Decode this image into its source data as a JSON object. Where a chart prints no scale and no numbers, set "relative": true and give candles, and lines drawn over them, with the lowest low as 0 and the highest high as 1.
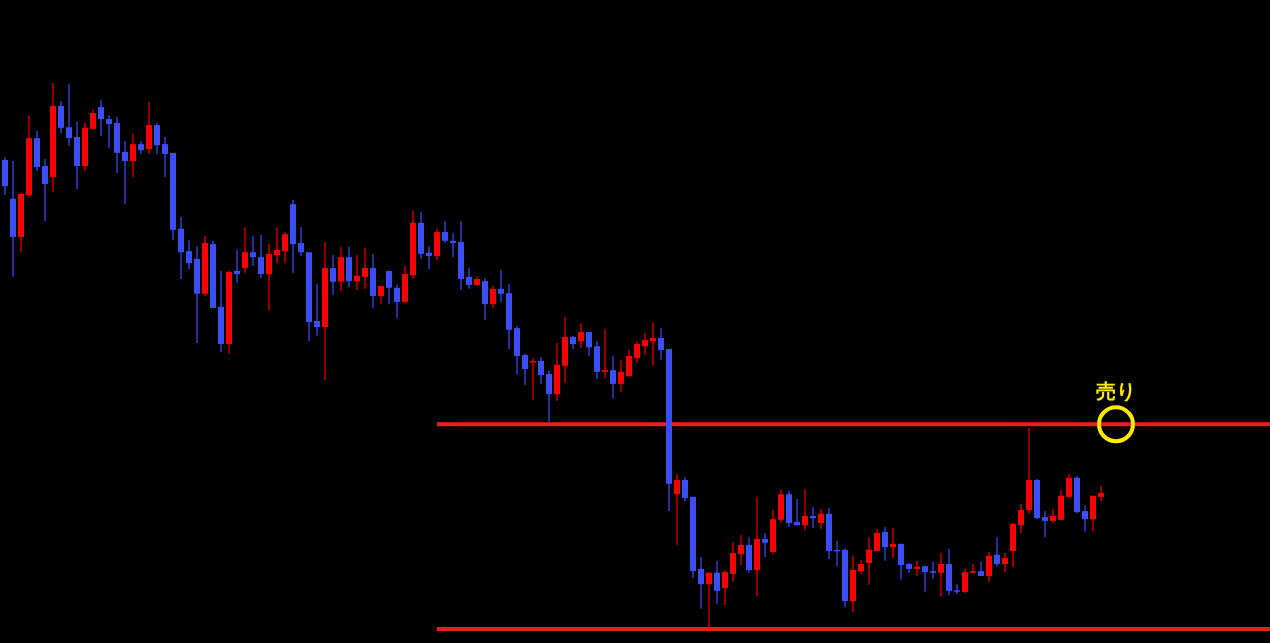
{
  "chart_data": {
    "type": "candlestick",
    "relative": true,
    "categories": [
      null,
      null,
      null,
      null,
      null,
      null,
      null,
      null,
      null,
      null,
      null,
      null,
      null,
      null,
      null,
      null,
      null,
      null,
      null,
      null,
      null,
      null,
      null,
      null,
      null,
      null,
      null,
      null,
      null,
      null,
      null,
      null,
      null,
      null,
      null,
      null,
      null,
      null,
      null,
      null,
      null,
      null,
      null,
      null,
      null,
      null,
      null,
      null,
      null,
      null,
      null,
      null,
      null,
      null,
      null,
      null,
      null,
      null,
      null,
      null,
      null,
      null,
      null,
      null,
      null,
      null,
      null,
      null,
      null,
      null,
      null,
      null,
      null,
      null,
      null,
      null,
      null,
      null,
      null,
      null,
      null,
      null,
      null,
      null,
      null,
      null,
      null,
      null,
      null,
      null,
      null,
      null,
      null,
      null,
      null,
      null,
      null,
      null,
      null,
      null,
      null,
      null,
      null,
      null,
      null,
      null,
      null,
      null,
      null,
      null,
      null,
      null,
      null,
      null,
      null,
      null,
      null,
      null,
      null,
      null,
      null,
      null,
      null,
      null,
      null,
      null,
      null,
      null,
      null,
      null,
      null,
      null,
      null,
      null,
      null,
      null,
      null,
      null
    ],
    "ohlc": [
      [
        0.859,
        0.864,
        0.795,
        0.811
      ],
      [
        0.788,
        0.857,
        0.645,
        0.718
      ],
      [
        0.718,
        0.799,
        0.69,
        0.797
      ],
      [
        0.795,
        0.941,
        0.791,
        0.899
      ],
      [
        0.899,
        0.912,
        0.839,
        0.846
      ],
      [
        0.848,
        0.861,
        0.747,
        0.815
      ],
      [
        0.828,
        1,
        0.8,
        0.958
      ],
      [
        0.958,
        0.967,
        0.908,
        0.918
      ],
      [
        0.919,
        0.998,
        0.885,
        0.899
      ],
      [
        0.901,
        0.929,
        0.806,
        0.848
      ],
      [
        0.848,
        0.927,
        0.839,
        0.918
      ],
      [
        0.916,
        0.951,
        0.916,
        0.945
      ],
      [
        0.956,
        0.969,
        0.903,
        0.934
      ],
      [
        0.934,
        0.941,
        0.881,
        0.925
      ],
      [
        0.927,
        0.938,
        0.835,
        0.872
      ],
      [
        0.874,
        0.894,
        0.778,
        0.857
      ],
      [
        0.857,
        0.907,
        0.828,
        0.888
      ],
      [
        0.888,
        0.894,
        0.87,
        0.877
      ],
      [
        0.879,
        0.965,
        0.87,
        0.923
      ],
      [
        0.923,
        0.927,
        0.87,
        0.886
      ],
      [
        0.888,
        0.901,
        0.828,
        0.87
      ],
      [
        0.872,
        0.872,
        0.712,
        0.731
      ],
      [
        0.733,
        0.755,
        0.641,
        0.69
      ],
      [
        0.692,
        0.712,
        0.659,
        0.67
      ],
      [
        0.678,
        0.701,
        0.524,
        0.614
      ],
      [
        0.614,
        0.72,
        0.61,
        0.707
      ],
      [
        0.705,
        0.711,
        0.588,
        0.588
      ],
      [
        0.59,
        0.656,
        0.507,
        0.522
      ],
      [
        0.522,
        0.656,
        0.504,
        0.654
      ],
      [
        0.656,
        0.694,
        0.634,
        0.65
      ],
      [
        0.661,
        0.736,
        0.652,
        0.69
      ],
      [
        0.69,
        0.72,
        0.665,
        0.681
      ],
      [
        0.681,
        0.722,
        0.643,
        0.65
      ],
      [
        0.65,
        0.705,
        0.584,
        0.687
      ],
      [
        0.685,
        0.736,
        0.67,
        0.694
      ],
      [
        0.692,
        0.727,
        0.67,
        0.723
      ],
      [
        0.778,
        0.786,
        0.652,
        0.705
      ],
      [
        0.707,
        0.736,
        0.683,
        0.69
      ],
      [
        0.69,
        0.69,
        0.527,
        0.562
      ],
      [
        0.564,
        0.632,
        0.537,
        0.553
      ],
      [
        0.553,
        0.709,
        0.456,
        0.661
      ],
      [
        0.661,
        0.685,
        0.612,
        0.636
      ],
      [
        0.636,
        0.7,
        0.619,
        0.681
      ],
      [
        0.681,
        0.7,
        0.626,
        0.637
      ],
      [
        0.637,
        0.685,
        0.621,
        0.647
      ],
      [
        0.645,
        0.698,
        0.623,
        0.661
      ],
      [
        0.661,
        0.687,
        0.588,
        0.61
      ],
      [
        0.61,
        0.628,
        0.595,
        0.628
      ],
      [
        0.656,
        0.656,
        0.595,
        0.625
      ],
      [
        0.625,
        0.63,
        0.57,
        0.599
      ],
      [
        0.599,
        0.665,
        0.597,
        0.65
      ],
      [
        0.648,
        0.767,
        0.641,
        0.744
      ],
      [
        0.744,
        0.764,
        0.678,
        0.687
      ],
      [
        0.689,
        0.701,
        0.659,
        0.683
      ],
      [
        0.683,
        0.733,
        0.676,
        0.727
      ],
      [
        0.727,
        0.747,
        0.707,
        0.711
      ],
      [
        0.711,
        0.725,
        0.681,
        0.707
      ],
      [
        0.709,
        0.747,
        0.621,
        0.641
      ],
      [
        0.645,
        0.661,
        0.623,
        0.63
      ],
      [
        0.63,
        0.645,
        0.628,
        0.641
      ],
      [
        0.637,
        0.643,
        0.566,
        0.595
      ],
      [
        0.595,
        0.628,
        0.588,
        0.623
      ],
      [
        0.623,
        0.658,
        0.599,
        0.614
      ],
      [
        0.615,
        0.632,
        0.513,
        0.548
      ],
      [
        0.551,
        0.555,
        0.467,
        0.5
      ],
      [
        0.502,
        0.504,
        0.447,
        0.476
      ],
      [
        0.489,
        0.496,
        0.419,
        0.491
      ],
      [
        0.491,
        0.498,
        0.449,
        0.465
      ],
      [
        0.467,
        0.473,
        0.379,
        0.43
      ],
      [
        0.43,
        0.524,
        0.418,
        0.484
      ],
      [
        0.482,
        0.571,
        0.451,
        0.535
      ],
      [
        0.535,
        0.537,
        0.513,
        0.522
      ],
      [
        0.527,
        0.56,
        0.515,
        0.544
      ],
      [
        0.544,
        0.544,
        0.5,
        0.516
      ],
      [
        0.518,
        0.527,
        0.458,
        0.471
      ],
      [
        0.471,
        0.549,
        0.46,
        0.474
      ],
      [
        0.474,
        0.5,
        0.423,
        0.449
      ],
      [
        0.449,
        0.493,
        0.434,
        0.471
      ],
      [
        0.463,
        0.511,
        0.462,
        0.5
      ],
      [
        0.496,
        0.527,
        0.487,
        0.522
      ],
      [
        0.518,
        0.542,
        0.502,
        0.529
      ],
      [
        0.527,
        0.562,
        0.482,
        0.533
      ],
      [
        0.533,
        0.551,
        0.493,
        0.511
      ],
      [
        0.513,
        0.513,
        0.216,
        0.266
      ],
      [
        0.247,
        0.284,
        0.154,
        0.273
      ],
      [
        0.273,
        0.278,
        0.234,
        0.24
      ],
      [
        0.242,
        0.242,
        0.093,
        0.106
      ],
      [
        0.11,
        0.132,
        0.037,
        0.082
      ],
      [
        0.082,
        0.104,
        0,
        0.103
      ],
      [
        0.103,
        0.125,
        0.046,
        0.07
      ],
      [
        0.075,
        0.108,
        0.044,
        0.104
      ],
      [
        0.101,
        0.159,
        0.086,
        0.139
      ],
      [
        0.137,
        0.172,
        0.117,
        0.154
      ],
      [
        0.154,
        0.168,
        0.103,
        0.108
      ],
      [
        0.108,
        0.242,
        0.06,
        0.165
      ],
      [
        0.165,
        0.176,
        0.132,
        0.158
      ],
      [
        0.141,
        0.218,
        0.137,
        0.201
      ],
      [
        0.2,
        0.256,
        0.194,
        0.247
      ],
      [
        0.247,
        0.253,
        0.187,
        0.194
      ],
      [
        0.196,
        0.238,
        0.19,
        0.19
      ],
      [
        0.19,
        0.256,
        0.181,
        0.207
      ],
      [
        0.207,
        0.223,
        0.185,
        0.203
      ],
      [
        0.194,
        0.22,
        0.183,
        0.211
      ],
      [
        0.211,
        0.222,
        0.128,
        0.143
      ],
      [
        0.145,
        0.161,
        0.115,
        0.143
      ],
      [
        0.145,
        0.148,
        0.04,
        0.051
      ],
      [
        0.051,
        0.134,
        0.031,
        0.108
      ],
      [
        0.106,
        0.126,
        0.101,
        0.119
      ],
      [
        0.121,
        0.168,
        0.081,
        0.145
      ],
      [
        0.143,
        0.183,
        0.143,
        0.176
      ],
      [
        0.178,
        0.187,
        0.125,
        0.15
      ],
      [
        0.15,
        0.185,
        0.13,
        0.156
      ],
      [
        0.156,
        0.156,
        0.09,
        0.117
      ],
      [
        0.119,
        0.121,
        0.103,
        0.11
      ],
      [
        0.11,
        0.125,
        0.097,
        0.114
      ],
      [
        0.115,
        0.115,
        0.068,
        0.104
      ],
      [
        0.106,
        0.123,
        0.092,
        0.103
      ],
      [
        0.103,
        0.139,
        0.059,
        0.119
      ],
      [
        0.119,
        0.147,
        0.062,
        0.07
      ],
      [
        0.071,
        0.082,
        0.064,
        0.07
      ],
      [
        0.068,
        0.11,
        0.066,
        0.104
      ],
      [
        0.103,
        0.119,
        0.101,
        0.106
      ],
      [
        0.106,
        0.123,
        0.097,
        0.097
      ],
      [
        0.097,
        0.141,
        0.086,
        0.134
      ],
      [
        0.136,
        0.168,
        0.115,
        0.119
      ],
      [
        0.119,
        0.139,
        0.104,
        0.13
      ],
      [
        0.143,
        0.194,
        0.114,
        0.192
      ],
      [
        0.19,
        0.229,
        0.176,
        0.218
      ],
      [
        0.218,
        0.368,
        0.211,
        0.273
      ],
      [
        0.273,
        0.275,
        0.201,
        0.203
      ],
      [
        0.205,
        0.216,
        0.168,
        0.198
      ],
      [
        0.198,
        0.22,
        0.194,
        0.207
      ],
      [
        0.2,
        0.255,
        0.2,
        0.244
      ],
      [
        0.242,
        0.284,
        0.24,
        0.277
      ],
      [
        0.277,
        0.28,
        0.212,
        0.214
      ],
      [
        0.216,
        0.227,
        0.178,
        0.201
      ],
      [
        0.201,
        0.244,
        0.179,
        0.244
      ],
      [
        0.242,
        0.262,
        0.234,
        0.249
      ]
    ],
    "colors": [
      "#3a4dff",
      "#3a4dff",
      "#ff0000",
      "#ff0000",
      "#3a4dff",
      "#3a4dff",
      "#ff0000",
      "#3a4dff",
      "#3a4dff",
      "#3a4dff",
      "#ff0000",
      "#ff0000",
      "#3a4dff",
      "#3a4dff",
      "#3a4dff",
      "#3a4dff",
      "#ff0000",
      "#3a4dff",
      "#ff0000",
      "#3a4dff",
      "#3a4dff",
      "#3a4dff",
      "#3a4dff",
      "#3a4dff",
      "#3a4dff",
      "#ff0000",
      "#3a4dff",
      "#3a4dff",
      "#ff0000",
      "#3a4dff",
      "#ff0000",
      "#3a4dff",
      "#3a4dff",
      "#ff0000",
      "#ff0000",
      "#ff0000",
      "#3a4dff",
      "#3a4dff",
      "#3a4dff",
      "#3a4dff",
      "#ff0000",
      "#3a4dff",
      "#ff0000",
      "#3a4dff",
      "#ff0000",
      "#ff0000",
      "#3a4dff",
      "#ff0000",
      "#3a4dff",
      "#3a4dff",
      "#ff0000",
      "#ff0000",
      "#3a4dff",
      "#3a4dff",
      "#ff0000",
      "#3a4dff",
      "#3a4dff",
      "#3a4dff",
      "#3a4dff",
      "#ff0000",
      "#3a4dff",
      "#ff0000",
      "#3a4dff",
      "#3a4dff",
      "#3a4dff",
      "#3a4dff",
      "#ff0000",
      "#3a4dff",
      "#3a4dff",
      "#ff0000",
      "#ff0000",
      "#3a4dff",
      "#ff0000",
      "#3a4dff",
      "#3a4dff",
      "#ff0000",
      "#3a4dff",
      "#ff0000",
      "#ff0000",
      "#ff0000",
      "#ff0000",
      "#ff0000",
      "#3a4dff",
      "#3a4dff",
      "#ff0000",
      "#3a4dff",
      "#3a4dff",
      "#3a4dff",
      "#ff0000",
      "#3a4dff",
      "#ff0000",
      "#ff0000",
      "#ff0000",
      "#3a4dff",
      "#ff0000",
      "#3a4dff",
      "#ff0000",
      "#ff0000",
      "#3a4dff",
      "#3a4dff",
      "#ff0000",
      "#3a4dff",
      "#ff0000",
      "#3a4dff",
      "#3a4dff",
      "#3a4dff",
      "#ff0000",
      "#ff0000",
      "#ff0000",
      "#ff0000",
      "#3a4dff",
      "#ff0000",
      "#3a4dff",
      "#3a4dff",
      "#ff0000",
      "#3a4dff",
      "#3a4dff",
      "#ff0000",
      "#3a4dff",
      "#3a4dff",
      "#ff0000",
      "#ff0000",
      "#3a4dff",
      "#ff0000",
      "#3a4dff",
      "#ff0000",
      "#ff0000",
      "#ff0000",
      "#ff0000",
      "#3a4dff",
      "#3a4dff",
      "#ff0000",
      "#ff0000",
      "#ff0000",
      "#3a4dff",
      "#3a4dff",
      "#ff0000",
      "#ff0000"
    ],
    "ref_lines": [
      {
        "axis": "y",
        "value": 0.375,
        "color": "#f01c24"
      },
      {
        "axis": "y",
        "value": 0,
        "color": "#f01c24"
      }
    ],
    "annotations": [
      {
        "text": "売り",
        "y": 0.375
      }
    ]
  }
}
